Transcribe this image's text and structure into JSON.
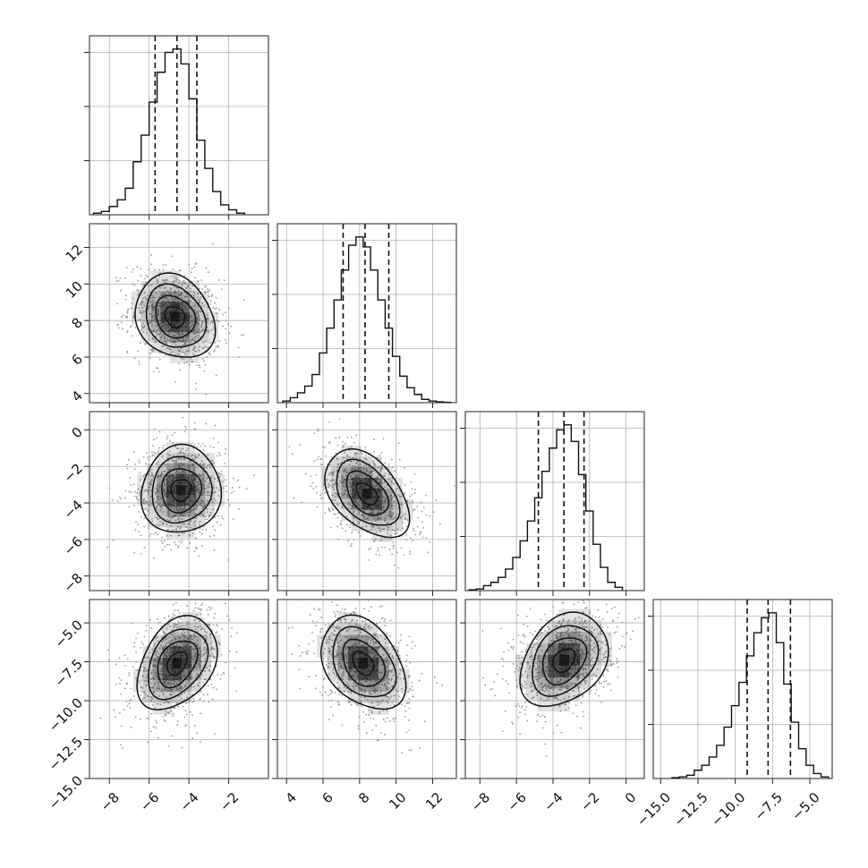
{
  "chart_data": {
    "type": "corner",
    "description_of_panels": "lower-triangular corner plot of 4 parameters: 1-D histograms on diagonal, 2-D density/contours below",
    "params": [
      {
        "id": "p0",
        "xlim": [
          -9,
          0
        ],
        "xticks": [
          -8,
          -6,
          -4,
          -2
        ],
        "xtick_labels": [
          "−8",
          "−6",
          "−4",
          "−2"
        ],
        "hist_ymax": 1.0,
        "hist_x": [
          -8.6,
          -8.2,
          -7.8,
          -7.4,
          -7.0,
          -6.6,
          -6.2,
          -5.8,
          -5.4,
          -5.0,
          -4.6,
          -4.2,
          -3.8,
          -3.4,
          -3.0,
          -2.6,
          -2.2,
          -1.8,
          -1.4
        ],
        "hist_y": [
          0.01,
          0.02,
          0.05,
          0.09,
          0.16,
          0.32,
          0.48,
          0.68,
          0.86,
          0.98,
          1.0,
          0.91,
          0.7,
          0.45,
          0.28,
          0.14,
          0.06,
          0.03,
          0.01
        ],
        "quantiles": [
          -5.7,
          -4.6,
          -3.6
        ]
      },
      {
        "id": "p1",
        "xlim": [
          3.5,
          13.3
        ],
        "xticks": [
          4,
          6,
          8,
          10,
          12
        ],
        "xtick_labels": [
          "4",
          "6",
          "8",
          "10",
          "12"
        ],
        "ylim": [
          3.5,
          13.3
        ],
        "yticks": [
          4,
          6,
          8,
          10,
          12
        ],
        "ytick_labels": [
          "4",
          "6",
          "8",
          "10",
          "12"
        ],
        "hist_ymax": 1.0,
        "hist_x": [
          4.0,
          4.4,
          4.8,
          5.2,
          5.6,
          6.0,
          6.4,
          6.8,
          7.2,
          7.6,
          8.0,
          8.4,
          8.8,
          9.2,
          9.6,
          10.0,
          10.4,
          10.8,
          11.2,
          11.6,
          12.0,
          12.4,
          12.8
        ],
        "hist_y": [
          0.01,
          0.03,
          0.06,
          0.1,
          0.17,
          0.3,
          0.45,
          0.62,
          0.8,
          0.95,
          1.0,
          0.94,
          0.8,
          0.62,
          0.45,
          0.28,
          0.16,
          0.09,
          0.05,
          0.02,
          0.01,
          0.005,
          0.002
        ],
        "quantiles": [
          7.1,
          8.3,
          9.6
        ]
      },
      {
        "id": "p2",
        "xlim": [
          -8.8,
          1.0
        ],
        "xticks": [
          -8,
          -6,
          -4,
          -2,
          0
        ],
        "xtick_labels": [
          "−8",
          "−6",
          "−4",
          "−2",
          "0"
        ],
        "ylim": [
          -8.8,
          1.0
        ],
        "yticks": [
          -8,
          -6,
          -4,
          -2,
          0
        ],
        "ytick_labels": [
          "−8",
          "−6",
          "−4",
          "−2",
          "0"
        ],
        "hist_ymax": 1.0,
        "hist_x": [
          -8.4,
          -8.0,
          -7.6,
          -7.2,
          -6.8,
          -6.4,
          -6.0,
          -5.6,
          -5.2,
          -4.8,
          -4.4,
          -4.0,
          -3.6,
          -3.2,
          -2.8,
          -2.4,
          -2.0,
          -1.6,
          -1.2,
          -0.8,
          -0.4
        ],
        "hist_y": [
          0.005,
          0.01,
          0.03,
          0.05,
          0.08,
          0.13,
          0.2,
          0.3,
          0.42,
          0.56,
          0.72,
          0.86,
          0.97,
          1.0,
          0.9,
          0.7,
          0.48,
          0.28,
          0.14,
          0.05,
          0.02
        ],
        "quantiles": [
          -4.8,
          -3.4,
          -2.3
        ]
      },
      {
        "id": "p3",
        "xlim": [
          -15.5,
          -3.5
        ],
        "xticks": [
          -15.0,
          -12.5,
          -10.0,
          -7.5,
          -5.0
        ],
        "xtick_labels": [
          "−15.0",
          "−12.5",
          "−10.0",
          "−7.5",
          "−5.0"
        ],
        "ylim": [
          -15.0,
          -3.5
        ],
        "yticks": [
          -15.0,
          -12.5,
          -10.0,
          -7.5,
          -5.0
        ],
        "ytick_labels": [
          "−15.0",
          "−12.5",
          "−10.0",
          "−7.5",
          "−5.0"
        ],
        "hist_ymax": 1.0,
        "hist_x": [
          -14.0,
          -13.5,
          -13.0,
          -12.5,
          -12.0,
          -11.5,
          -11.0,
          -10.5,
          -10.0,
          -9.5,
          -9.0,
          -8.5,
          -8.0,
          -7.5,
          -7.0,
          -6.5,
          -6.0,
          -5.5,
          -5.0,
          -4.5,
          -4.0
        ],
        "hist_y": [
          0.005,
          0.01,
          0.02,
          0.05,
          0.08,
          0.13,
          0.2,
          0.31,
          0.44,
          0.58,
          0.74,
          0.88,
          0.97,
          1.0,
          0.82,
          0.57,
          0.34,
          0.18,
          0.08,
          0.03,
          0.01
        ],
        "quantiles": [
          -9.2,
          -7.8,
          -6.3
        ]
      }
    ],
    "density_centers": {
      "1_0": [
        -4.7,
        8.2
      ],
      "2_0": [
        -4.4,
        -3.3
      ],
      "2_1": [
        8.4,
        -3.5
      ],
      "3_0": [
        -4.6,
        -7.6
      ],
      "3_1": [
        8.2,
        -7.6
      ],
      "3_2": [
        -3.4,
        -7.4
      ]
    },
    "colors": {
      "line": "#111111",
      "grid": "#b0b0b0",
      "points": "#9a9a9a",
      "density": "#000000"
    }
  }
}
